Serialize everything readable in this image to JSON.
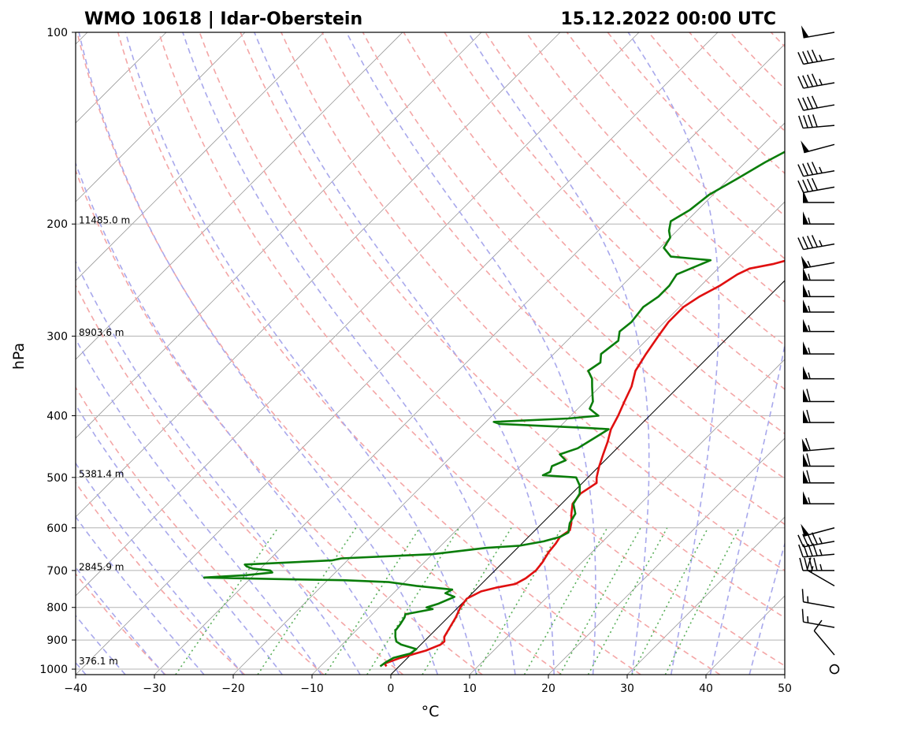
{
  "header": {
    "station": "WMO 10618 | Idar-Oberstein",
    "datetime": "15.12.2022 00:00 UTC"
  },
  "chart_data": {
    "type": "skew-t log-p sounding",
    "xlabel": "°C",
    "ylabel": "hPa",
    "xlim": [
      -40,
      50
    ],
    "ylim": [
      1020,
      100
    ],
    "x_ticks": [
      -40,
      -30,
      -20,
      -10,
      0,
      10,
      20,
      30,
      40,
      50
    ],
    "y_ticks": [
      100,
      200,
      300,
      400,
      500,
      600,
      700,
      800,
      900,
      1000
    ],
    "y_scale": "log",
    "grid": "horizontal isobars at ticks",
    "height_labels": [
      {
        "p": 200,
        "text": "11485.0 m"
      },
      {
        "p": 300,
        "text": "8903.6 m"
      },
      {
        "p": 500,
        "text": "5381.4 m"
      },
      {
        "p": 700,
        "text": "2845.9 m"
      },
      {
        "p": 985,
        "text": "376.1 m"
      }
    ],
    "colors": {
      "temperature": "#e01010",
      "dewpoint": "#0a7d0a",
      "dry_adiabat": "#f4a6a6",
      "moist_adiabat": "#a8a8ec",
      "mixing_ratio": "#5aaf5a",
      "isotherm": "#9a9a9a",
      "isobar": "#b4b4b4"
    },
    "series": [
      {
        "key": "temperature",
        "points": [
          [
            990,
            -1.6
          ],
          [
            980,
            -2.2
          ],
          [
            960,
            -0.9
          ],
          [
            935,
            1.4
          ],
          [
            915,
            2.5
          ],
          [
            905,
            2.6
          ],
          [
            890,
            2.0
          ],
          [
            860,
            1.5
          ],
          [
            830,
            1.0
          ],
          [
            800,
            0.3
          ],
          [
            775,
            0.0
          ],
          [
            755,
            0.9
          ],
          [
            745,
            2.3
          ],
          [
            735,
            4.3
          ],
          [
            720,
            4.9
          ],
          [
            700,
            5.2
          ],
          [
            680,
            5.0
          ],
          [
            655,
            4.5
          ],
          [
            635,
            4.3
          ],
          [
            620,
            4.0
          ],
          [
            605,
            4.4
          ],
          [
            590,
            3.7
          ],
          [
            570,
            2.5
          ],
          [
            550,
            1.4
          ],
          [
            530,
            1.1
          ],
          [
            510,
            1.8
          ],
          [
            500,
            1.1
          ],
          [
            480,
            0.0
          ],
          [
            460,
            -1.0
          ],
          [
            440,
            -2.0
          ],
          [
            420,
            -3.2
          ],
          [
            400,
            -4.0
          ],
          [
            380,
            -5.0
          ],
          [
            360,
            -6.0
          ],
          [
            340,
            -7.5
          ],
          [
            320,
            -8.3
          ],
          [
            300,
            -9.0
          ],
          [
            285,
            -9.5
          ],
          [
            270,
            -9.5
          ],
          [
            260,
            -8.8
          ],
          [
            250,
            -7.6
          ],
          [
            240,
            -6.8
          ],
          [
            235,
            -6.0
          ],
          [
            231,
            -3.5
          ],
          [
            226,
            -1.5
          ],
          [
            221,
            1.5
          ],
          [
            216,
            2.0
          ],
          [
            210,
            2.8
          ],
          [
            203,
            3.0
          ],
          [
            196,
            4.0
          ],
          [
            188,
            5.5
          ],
          [
            180,
            6.8
          ],
          [
            175,
            7.5
          ],
          [
            168,
            9.0
          ],
          [
            160,
            10.0
          ],
          [
            152,
            11.5
          ],
          [
            145,
            13.0
          ],
          [
            138,
            15.0
          ],
          [
            131,
            17.0
          ],
          [
            124,
            18.5
          ],
          [
            118,
            19.5
          ],
          [
            112,
            21.0
          ],
          [
            108,
            21.0
          ],
          [
            104,
            22.5
          ],
          [
            102,
            23.5
          ],
          [
            100,
            24.0
          ]
        ]
      },
      {
        "key": "dewpoint",
        "points": [
          [
            990,
            -2.4
          ],
          [
            975,
            -2.2
          ],
          [
            960,
            -1.8
          ],
          [
            945,
            -0.2
          ],
          [
            930,
            0.0
          ],
          [
            915,
            -2.5
          ],
          [
            905,
            -3.5
          ],
          [
            890,
            -4.2
          ],
          [
            870,
            -5.0
          ],
          [
            850,
            -5.2
          ],
          [
            830,
            -5.5
          ],
          [
            820,
            -5.8
          ],
          [
            805,
            -3.0
          ],
          [
            800,
            -4.0
          ],
          [
            790,
            -3.0
          ],
          [
            770,
            -1.8
          ],
          [
            760,
            -3.4
          ],
          [
            750,
            -3.0
          ],
          [
            740,
            -8.0
          ],
          [
            730,
            -12.0
          ],
          [
            725,
            -18.0
          ],
          [
            722,
            -27.0
          ],
          [
            718,
            -36.0
          ],
          [
            712,
            -31.0
          ],
          [
            705,
            -28.0
          ],
          [
            700,
            -28.5
          ],
          [
            695,
            -31.0
          ],
          [
            690,
            -32.0
          ],
          [
            685,
            -32.5
          ],
          [
            675,
            -22.0
          ],
          [
            670,
            -21.0
          ],
          [
            660,
            -10.0
          ],
          [
            655,
            -8.0
          ],
          [
            645,
            -4.0
          ],
          [
            640,
            0.0
          ],
          [
            630,
            2.5
          ],
          [
            620,
            4.0
          ],
          [
            610,
            4.5
          ],
          [
            600,
            4.0
          ],
          [
            590,
            3.5
          ],
          [
            570,
            3.0
          ],
          [
            550,
            1.5
          ],
          [
            530,
            1.0
          ],
          [
            515,
            0.0
          ],
          [
            500,
            -1.5
          ],
          [
            496,
            -6.0
          ],
          [
            490,
            -5.5
          ],
          [
            480,
            -6.0
          ],
          [
            470,
            -5.0
          ],
          [
            460,
            -6.5
          ],
          [
            450,
            -5.0
          ],
          [
            440,
            -4.5
          ],
          [
            430,
            -4.0
          ],
          [
            420,
            -3.5
          ],
          [
            418,
            -6.5
          ],
          [
            412,
            -18.0
          ],
          [
            409,
            -19.0
          ],
          [
            404,
            -10.0
          ],
          [
            400,
            -6.5
          ],
          [
            395,
            -7.5
          ],
          [
            390,
            -8.5
          ],
          [
            380,
            -9.0
          ],
          [
            370,
            -10.0
          ],
          [
            360,
            -11.0
          ],
          [
            350,
            -12.0
          ],
          [
            340,
            -13.5
          ],
          [
            330,
            -13.0
          ],
          [
            320,
            -14.0
          ],
          [
            305,
            -13.5
          ],
          [
            295,
            -14.5
          ],
          [
            285,
            -14.2
          ],
          [
            270,
            -14.6
          ],
          [
            260,
            -14.0
          ],
          [
            250,
            -14.0
          ],
          [
            240,
            -14.5
          ],
          [
            228,
            -12.0
          ],
          [
            225,
            -17.5
          ],
          [
            218,
            -19.5
          ],
          [
            210,
            -20.0
          ],
          [
            205,
            -21.0
          ],
          [
            198,
            -22.0
          ],
          [
            190,
            -21.0
          ],
          [
            180,
            -20.5
          ],
          [
            170,
            -19.0
          ],
          [
            160,
            -17.5
          ],
          [
            150,
            -15.5
          ],
          [
            140,
            -13.5
          ],
          [
            130,
            -11.0
          ],
          [
            120,
            -9.0
          ],
          [
            112,
            -6.0
          ],
          [
            105,
            -5.0
          ],
          [
            100,
            -4.0
          ]
        ]
      }
    ],
    "wind_barbs": [
      {
        "p": 100,
        "dir": 260,
        "kt": 50
      },
      {
        "p": 110,
        "dir": 260,
        "kt": 45
      },
      {
        "p": 120,
        "dir": 260,
        "kt": 45
      },
      {
        "p": 130,
        "dir": 260,
        "kt": 40
      },
      {
        "p": 140,
        "dir": 265,
        "kt": 40
      },
      {
        "p": 150,
        "dir": 255,
        "kt": 50
      },
      {
        "p": 165,
        "dir": 260,
        "kt": 45
      },
      {
        "p": 175,
        "dir": 260,
        "kt": 40
      },
      {
        "p": 185,
        "dir": 270,
        "kt": 50
      },
      {
        "p": 200,
        "dir": 270,
        "kt": 55
      },
      {
        "p": 215,
        "dir": 260,
        "kt": 45
      },
      {
        "p": 230,
        "dir": 260,
        "kt": 55
      },
      {
        "p": 245,
        "dir": 270,
        "kt": 55
      },
      {
        "p": 260,
        "dir": 270,
        "kt": 55
      },
      {
        "p": 275,
        "dir": 270,
        "kt": 55
      },
      {
        "p": 295,
        "dir": 270,
        "kt": 55
      },
      {
        "p": 320,
        "dir": 270,
        "kt": 55
      },
      {
        "p": 350,
        "dir": 270,
        "kt": 55
      },
      {
        "p": 380,
        "dir": 270,
        "kt": 60
      },
      {
        "p": 410,
        "dir": 270,
        "kt": 60
      },
      {
        "p": 450,
        "dir": 265,
        "kt": 60
      },
      {
        "p": 480,
        "dir": 270,
        "kt": 60
      },
      {
        "p": 510,
        "dir": 270,
        "kt": 60
      },
      {
        "p": 550,
        "dir": 270,
        "kt": 55
      },
      {
        "p": 600,
        "dir": 255,
        "kt": 50
      },
      {
        "p": 630,
        "dir": 260,
        "kt": 45
      },
      {
        "p": 660,
        "dir": 265,
        "kt": 45
      },
      {
        "p": 700,
        "dir": 270,
        "kt": 45
      },
      {
        "p": 740,
        "dir": 300,
        "kt": 15
      },
      {
        "p": 800,
        "dir": 280,
        "kt": 15
      },
      {
        "p": 860,
        "dir": 280,
        "kt": 15
      },
      {
        "p": 950,
        "dir": 320,
        "kt": 10
      },
      {
        "p": 1000,
        "dir": 0,
        "kt": 0
      }
    ]
  }
}
